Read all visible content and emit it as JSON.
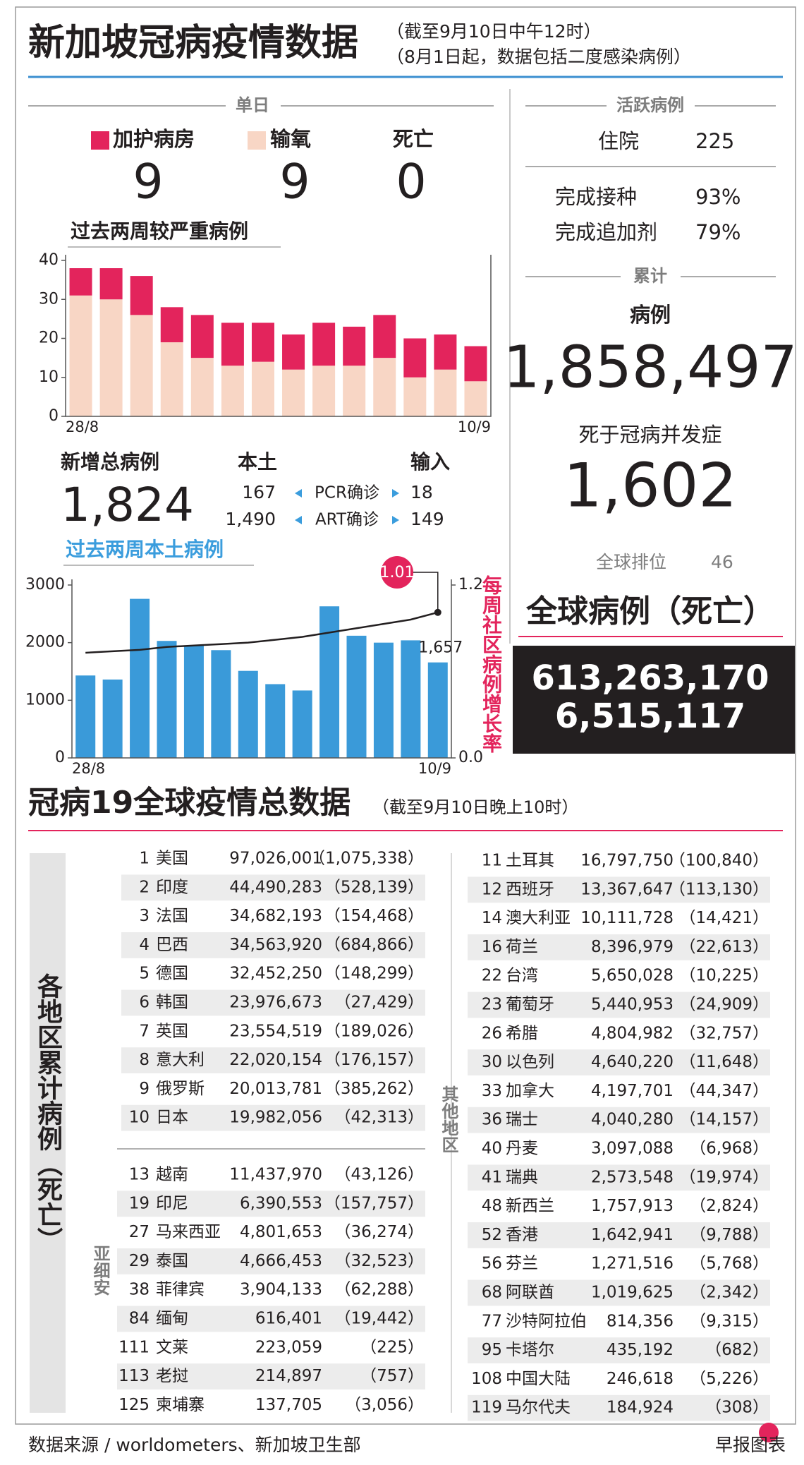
{
  "header": {
    "title": "新加坡冠病疫情数据",
    "notes": [
      "（截至9月10日中午12时）",
      "（8月1日起，数据包括二度感染病例）"
    ]
  },
  "daily": {
    "label": "单日",
    "death_label": "死亡",
    "values": [
      9,
      9,
      0
    ]
  },
  "new_cases": {
    "label": "新增总病例",
    "total": "1,824",
    "local_label": "本土",
    "imported_label": "输入",
    "rows": [
      {
        "label": "PCR确诊",
        "local": 167,
        "imported": 18
      },
      {
        "label": "ART确诊",
        "local": "1,490",
        "imported": 149
      }
    ]
  },
  "active": {
    "label": "活跃病例",
    "hospital_label": "住院",
    "hospital": 225,
    "vaccinated_label": "完成接种",
    "vaccinated": "93%",
    "booster_label": "完成追加剂",
    "booster": "79%"
  },
  "cumulative": {
    "label": "累计",
    "cases_label": "病例",
    "cases": "1,858,497",
    "deaths_label": "死于冠病并发症",
    "deaths": "1,602",
    "rank_label": "全球排位",
    "rank": 46
  },
  "global": {
    "label": "全球病例（死亡）",
    "cases": "613,263,170",
    "deaths": "6,515,117"
  },
  "chart_data": [
    {
      "type": "stacked-bar",
      "title": "过去两周较严重病例",
      "categories": [
        "28/8",
        null,
        null,
        null,
        null,
        null,
        null,
        null,
        null,
        null,
        null,
        null,
        null,
        "10/9"
      ],
      "series": [
        {
          "name": "输氧",
          "color": "#f8d6c5",
          "values": [
            31,
            30,
            26,
            19,
            15,
            13,
            14,
            12,
            13,
            13,
            15,
            10,
            12,
            9
          ]
        },
        {
          "name": "加护病房",
          "color": "#e3245c",
          "values": [
            7,
            8,
            10,
            9,
            11,
            11,
            10,
            9,
            11,
            10,
            11,
            10,
            9,
            9
          ]
        }
      ],
      "ylim": [
        0,
        40
      ],
      "yticks": [
        0,
        10,
        20,
        30,
        40
      ]
    },
    {
      "type": "bar-line",
      "title": "过去两周本土病例",
      "categories": [
        "28/8",
        null,
        null,
        null,
        null,
        null,
        null,
        null,
        null,
        null,
        null,
        null,
        null,
        "10/9"
      ],
      "series": [
        {
          "color": "#3a9ad9",
          "values": [
            1430,
            1360,
            2760,
            2030,
            1950,
            1870,
            1510,
            1280,
            1170,
            2630,
            2120,
            2000,
            2040,
            1657
          ],
          "value_labels": [
            null,
            null,
            null,
            null,
            null,
            null,
            null,
            null,
            null,
            null,
            null,
            null,
            null,
            "1,657"
          ]
        },
        {
          "name": "每周社区病例增长率",
          "color": "#231f20",
          "axis": "y2",
          "values": [
            0.73,
            0.74,
            0.75,
            0.77,
            0.78,
            0.79,
            0.8,
            0.82,
            0.84,
            0.87,
            0.9,
            0.93,
            0.96,
            1.01
          ]
        }
      ],
      "ylim": [
        0,
        3000
      ],
      "yticks": [
        0,
        1000,
        2000,
        3000
      ],
      "y2lim": [
        0,
        1.2
      ],
      "y2ticks": [
        {
          "value": 0,
          "label": "0.0"
        },
        1.2
      ]
    }
  ],
  "table": {
    "title": "冠病19全球疫情总数据",
    "note": "（截至9月10日晚上10时）",
    "side_label": "各地区累计病例（死亡）",
    "groups": [
      {
        "rows": [
          [
            1,
            "美国",
            "97,026,001",
            "（1,075,338）"
          ],
          [
            2,
            "印度",
            "44,490,283",
            "（528,139）"
          ],
          [
            3,
            "法国",
            "34,682,193",
            "（154,468）"
          ],
          [
            4,
            "巴西",
            "34,563,920",
            "（684,866）"
          ],
          [
            5,
            "德国",
            "32,452,250",
            "（148,299）"
          ],
          [
            6,
            "韩国",
            "23,976,673",
            "（27,429）"
          ],
          [
            7,
            "英国",
            "23,554,519",
            "（189,026）"
          ],
          [
            8,
            "意大利",
            "22,020,154",
            "（176,157）"
          ],
          [
            9,
            "俄罗斯",
            "20,013,781",
            "（385,262）"
          ],
          [
            10,
            "日本",
            "19,982,056",
            "（42,313）"
          ]
        ]
      },
      {
        "label": "亚细安",
        "rows": [
          [
            13,
            "越南",
            "11,437,970",
            "（43,126）"
          ],
          [
            19,
            "印尼",
            "6,390,553",
            "（157,757）"
          ],
          [
            27,
            "马来西亚",
            "4,801,653",
            "（36,274）"
          ],
          [
            29,
            "泰国",
            "4,666,453",
            "（32,523）"
          ],
          [
            38,
            "菲律宾",
            "3,904,133",
            "（62,288）"
          ],
          [
            84,
            "缅甸",
            "616,401",
            "（19,442）"
          ],
          [
            111,
            "文莱",
            "223,059",
            "（225）"
          ],
          [
            113,
            "老挝",
            "214,897",
            "（757）"
          ],
          [
            125,
            "柬埔寨",
            "137,705",
            "（3,056）"
          ]
        ]
      },
      {
        "label": "其他地区",
        "rows": [
          [
            11,
            "土耳其",
            "16,797,750",
            "（100,840）"
          ],
          [
            12,
            "西班牙",
            "13,367,647",
            "（113,130）"
          ],
          [
            14,
            "澳大利亚",
            "10,111,728",
            "（14,421）"
          ],
          [
            16,
            "荷兰",
            "8,396,979",
            "（22,613）"
          ],
          [
            22,
            "台湾",
            "5,650,028",
            "（10,225）"
          ],
          [
            23,
            "葡萄牙",
            "5,440,953",
            "（24,909）"
          ],
          [
            26,
            "希腊",
            "4,804,982",
            "（32,757）"
          ],
          [
            30,
            "以色列",
            "4,640,220",
            "（11,648）"
          ],
          [
            33,
            "加拿大",
            "4,197,701",
            "（44,347）"
          ],
          [
            36,
            "瑞士",
            "4,040,280",
            "（14,157）"
          ],
          [
            40,
            "丹麦",
            "3,097,088",
            "（6,968）"
          ],
          [
            41,
            "瑞典",
            "2,573,548",
            "（19,974）"
          ],
          [
            48,
            "新西兰",
            "1,757,913",
            "（2,824）"
          ],
          [
            52,
            "香港",
            "1,642,941",
            "（9,788）"
          ],
          [
            56,
            "芬兰",
            "1,271,516",
            "（5,768）"
          ],
          [
            68,
            "阿联酋",
            "1,019,625",
            "（2,342）"
          ],
          [
            77,
            "沙特阿拉伯",
            "814,356",
            "（9,315）"
          ],
          [
            95,
            "卡塔尔",
            "435,192",
            "（682）"
          ],
          [
            108,
            "中国大陆",
            "246,618",
            "（5,226）"
          ],
          [
            119,
            "马尔代夫",
            "184,924",
            "（308）"
          ]
        ]
      }
    ]
  },
  "footer": {
    "source": "数据来源 / worldometers、新加坡卫生部",
    "credit": "早报图表"
  }
}
